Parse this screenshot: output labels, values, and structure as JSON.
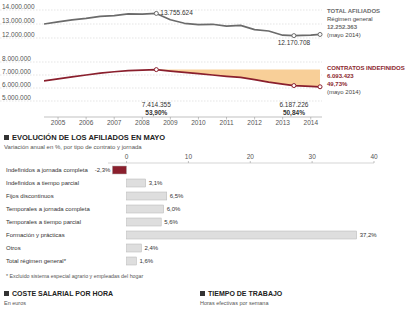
{
  "chart_data": [
    {
      "type": "line",
      "x": [
        2004.5,
        2005,
        2005.5,
        2006,
        2006.5,
        2007,
        2007.5,
        2008,
        2008.5,
        2009,
        2009.5,
        2010,
        2010.5,
        2011,
        2011.5,
        2012,
        2012.5,
        2013,
        2013.4,
        2014,
        2014.33
      ],
      "xlim": [
        2004.5,
        2014.4
      ],
      "xticks": [
        2005,
        2006,
        2007,
        2008,
        2009,
        2010,
        2011,
        2012,
        2013,
        2014
      ],
      "ylim": [
        12000000,
        14000000
      ],
      "yticks": [
        {
          "value": 14000000,
          "label": "14.000.000"
        },
        {
          "value": 13000000,
          "label": "13.000.000"
        },
        {
          "value": 12000000,
          "label": "12.000.000"
        }
      ],
      "y2lim": [
        5000000,
        8000000
      ],
      "y2ticks": [
        {
          "value": 8000000,
          "label": "8.000.000"
        },
        {
          "value": 7000000,
          "label": "7.000.000"
        },
        {
          "value": 6000000,
          "label": "6.000.000"
        },
        {
          "value": 5000000,
          "label": "5.000.000"
        }
      ],
      "grid": true,
      "series": [
        {
          "name": "TOTAL AFILIADOS",
          "label_lines": [
            "Régimen general",
            "12.252.363",
            "(mayo 2014)"
          ],
          "color": "#6b6b6b",
          "values": [
            13000000,
            13150000,
            13300000,
            13400000,
            13550000,
            13600000,
            13720000,
            13700000,
            13755624,
            13300000,
            13050000,
            12950000,
            12980000,
            12850000,
            12900000,
            12600000,
            12500000,
            12200000,
            12170708,
            12200000,
            12252363
          ]
        },
        {
          "name": "CONTRATOS INDEFINIDOS",
          "label_lines": [
            "6.093.423",
            "49,73%",
            "(mayo 2014)"
          ],
          "color": "#8a1f2d",
          "axis": "y2",
          "values": [
            6550000,
            6700000,
            6850000,
            7000000,
            7150000,
            7250000,
            7330000,
            7380000,
            7414355,
            7300000,
            7200000,
            7100000,
            7000000,
            6900000,
            6820000,
            6650000,
            6450000,
            6300000,
            6187226,
            6120000,
            6093423
          ]
        }
      ],
      "annotations": [
        {
          "series": 0,
          "x": 2008.5,
          "value": 13755624,
          "lines": [
            "13.755.624"
          ]
        },
        {
          "series": 0,
          "x": 2013.4,
          "value": 12170708,
          "lines": [
            "12.170.708"
          ]
        },
        {
          "series": 1,
          "x": 2008.5,
          "value": 7414355,
          "lines": [
            "7.414.355",
            "53,90%"
          ],
          "color": "#f8cf98"
        },
        {
          "series": 1,
          "x": 2013.4,
          "value": 6187226,
          "lines": [
            "6.187.226",
            "50,84%"
          ]
        }
      ]
    },
    {
      "type": "bar",
      "orientation": "horizontal",
      "title": "EVOLUCIÓN DE LOS AFILIADOS EN MAYO",
      "subtitle": "Variación anual en %, por tipo de contrato y jornada",
      "categories": [
        "Indefinidos a jornada completa",
        "Indefinidos a tiempo parcial",
        "Fijos discontinuos",
        "Temporales a jornada completa",
        "Temporales a tiempo parcial",
        "Formación y prácticas",
        "Otros",
        "Total régimen general*"
      ],
      "values": [
        -2.3,
        3.1,
        6.5,
        6.0,
        5.6,
        37.2,
        2.4,
        1.6
      ],
      "value_labels": [
        "-2,3%",
        "3,1%",
        "6,5%",
        "6,0%",
        "5,6%",
        "37,2%",
        "2,4%",
        "1,6%"
      ],
      "colors": [
        "#8a1f2d",
        "#dedede",
        "#dedede",
        "#dedede",
        "#dedede",
        "#dedede",
        "#dedede",
        "#dedede"
      ],
      "xlim": [
        -3,
        40
      ],
      "xticks": [
        0,
        10,
        20,
        30,
        40
      ],
      "data_labels": true,
      "annotations": [
        {
          "text": "* Excluido sistema especial agrario y empleadas del hogar"
        }
      ]
    }
  ],
  "sections": [
    {
      "title": "COSTE SALARIAL POR HORA",
      "subtitle": "En euros"
    },
    {
      "title": "TIEMPO DE TRABAJO",
      "subtitle": "Horas efectivas por semana"
    }
  ]
}
